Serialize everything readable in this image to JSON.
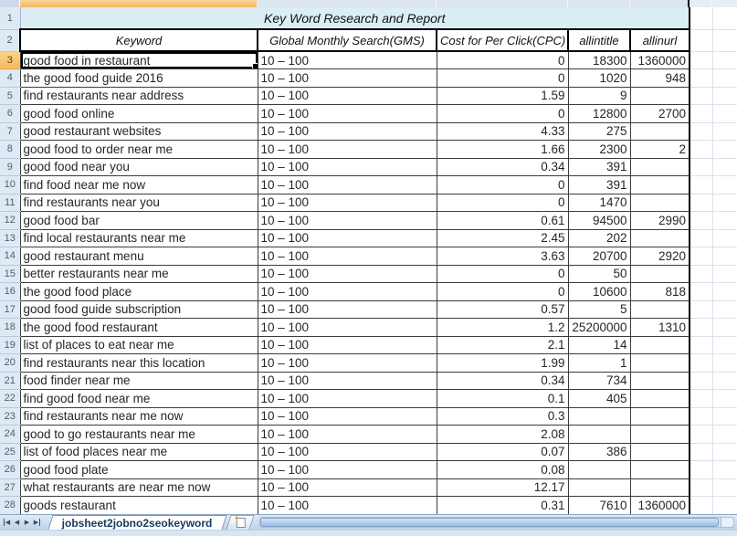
{
  "sheet": {
    "title": "Key Word Research and Report",
    "title_row_number": "1",
    "header_row_number": "2",
    "columns": [
      "Keyword",
      "Global Monthly Search(GMS)",
      "Cost for Per Click(CPC)",
      "allintitle",
      "allinurl"
    ],
    "selection": {
      "row": "3",
      "column": "A"
    },
    "rows": [
      {
        "num": "3",
        "cells": [
          "good food in restaurant",
          "10 – 100",
          "0",
          "18300",
          "1360000"
        ]
      },
      {
        "num": "4",
        "cells": [
          "the good food guide 2016",
          "10 – 100",
          "0",
          "1020",
          "948"
        ]
      },
      {
        "num": "5",
        "cells": [
          "find restaurants near address",
          "10 – 100",
          "1.59",
          "9",
          ""
        ]
      },
      {
        "num": "6",
        "cells": [
          "good food online",
          "10 – 100",
          "0",
          "12800",
          "2700"
        ]
      },
      {
        "num": "7",
        "cells": [
          "good restaurant websites",
          "10 – 100",
          "4.33",
          "275",
          ""
        ]
      },
      {
        "num": "8",
        "cells": [
          "good food to order near me",
          "10 – 100",
          "1.66",
          "2300",
          "2"
        ]
      },
      {
        "num": "9",
        "cells": [
          "good food near you",
          "10 – 100",
          "0.34",
          "391",
          ""
        ]
      },
      {
        "num": "10",
        "cells": [
          "find food near me now",
          "10 – 100",
          "0",
          "391",
          ""
        ]
      },
      {
        "num": "11",
        "cells": [
          "find restaurants near you",
          "10 – 100",
          "0",
          "1470",
          ""
        ]
      },
      {
        "num": "12",
        "cells": [
          "good food bar",
          "10 – 100",
          "0.61",
          "94500",
          "2990"
        ]
      },
      {
        "num": "13",
        "cells": [
          "find local restaurants near me",
          "10 – 100",
          "2.45",
          "202",
          ""
        ]
      },
      {
        "num": "14",
        "cells": [
          "good restaurant menu",
          "10 – 100",
          "3.63",
          "20700",
          "2920"
        ]
      },
      {
        "num": "15",
        "cells": [
          "better restaurants near me",
          "10 – 100",
          "0",
          "50",
          ""
        ]
      },
      {
        "num": "16",
        "cells": [
          "the good food place",
          "10 – 100",
          "0",
          "10600",
          "818"
        ]
      },
      {
        "num": "17",
        "cells": [
          "good food guide subscription",
          "10 – 100",
          "0.57",
          "5",
          ""
        ]
      },
      {
        "num": "18",
        "cells": [
          "the good food restaurant",
          "10 – 100",
          "1.2",
          "25200000",
          "1310"
        ]
      },
      {
        "num": "19",
        "cells": [
          "list of places to eat near me",
          "10 – 100",
          "2.1",
          "14",
          ""
        ]
      },
      {
        "num": "20",
        "cells": [
          "find restaurants near this location",
          "10 – 100",
          "1.99",
          "1",
          ""
        ]
      },
      {
        "num": "21",
        "cells": [
          "food finder near me",
          "10 – 100",
          "0.34",
          "734",
          ""
        ]
      },
      {
        "num": "22",
        "cells": [
          "find good food near me",
          "10 – 100",
          "0.1",
          "405",
          ""
        ]
      },
      {
        "num": "23",
        "cells": [
          "find restaurants near me now",
          "10 – 100",
          "0.3",
          "",
          ""
        ]
      },
      {
        "num": "24",
        "cells": [
          "good to go restaurants near me",
          "10 – 100",
          "2.08",
          "",
          ""
        ]
      },
      {
        "num": "25",
        "cells": [
          "list of food places near me",
          "10 – 100",
          "0.07",
          "386",
          ""
        ]
      },
      {
        "num": "26",
        "cells": [
          "good food plate",
          "10 – 100",
          "0.08",
          "",
          ""
        ]
      },
      {
        "num": "27",
        "cells": [
          "what restaurants are near me now",
          "10 – 100",
          "12.17",
          "",
          ""
        ]
      },
      {
        "num": "28",
        "cells": [
          "goods restaurant",
          "10 – 100",
          "0.31",
          "7610",
          "1360000"
        ]
      }
    ]
  },
  "tab_bar": {
    "sheet_name": "jobsheet2jobno2seokeyword"
  },
  "colors": {
    "selected_header": "#f5b75f",
    "title_fill": "#daeef3",
    "header_strip": "#dce6f1",
    "tab_text": "#17375e",
    "scrollbar": "#9cbde3"
  }
}
